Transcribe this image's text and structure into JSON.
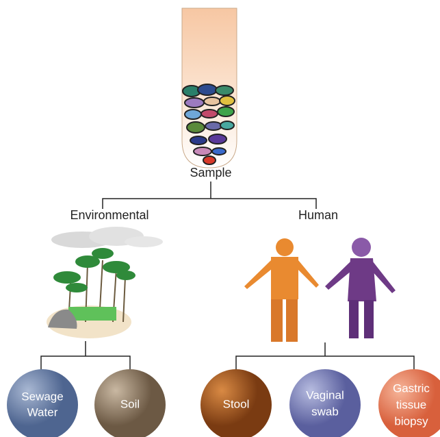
{
  "root": {
    "label": "Sample"
  },
  "branches": [
    {
      "label": "Environmental",
      "leaves": [
        {
          "lines": [
            "Sewage",
            "Water"
          ]
        },
        {
          "lines": [
            "Soil"
          ]
        }
      ]
    },
    {
      "label": "Human",
      "leaves": [
        {
          "lines": [
            "Stool"
          ]
        },
        {
          "lines": [
            "Vaginal",
            "swab"
          ]
        },
        {
          "lines": [
            "Gastric",
            "tissue",
            "biopsy"
          ]
        }
      ]
    }
  ]
}
